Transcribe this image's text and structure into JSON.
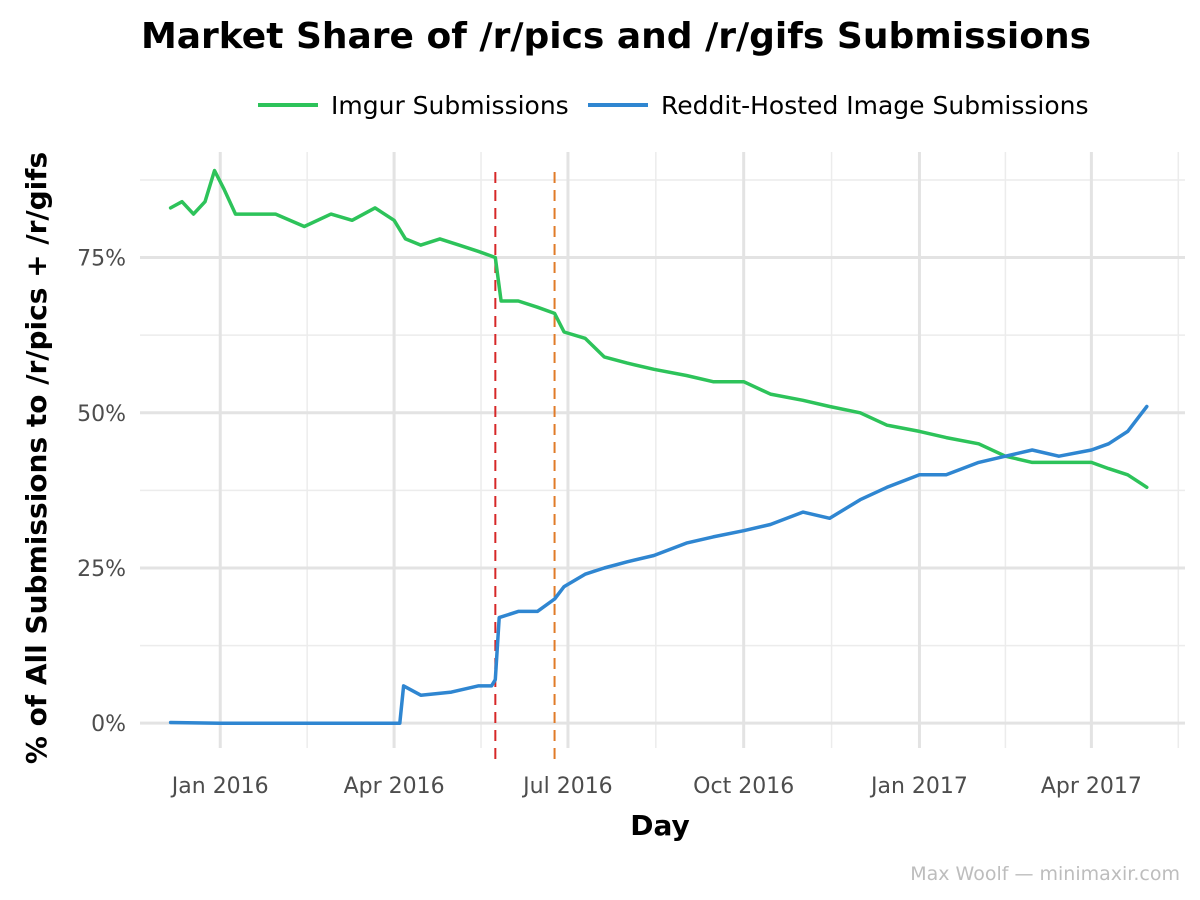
{
  "chart_data": {
    "type": "line",
    "title": "Market Share of /r/pics and /r/gifs Submissions",
    "xlabel": "Day",
    "ylabel": "% of All Submissions to /r/pics + /r/gifs",
    "credit": "Max Woolf — minimaxir.com",
    "legend_position": "top",
    "grid": true,
    "x_range": [
      "2015-11-20",
      "2017-05-20"
    ],
    "ylim": [
      -0.04,
      0.92
    ],
    "x_ticks": [
      {
        "date": "2016-01-01",
        "label": "Jan 2016"
      },
      {
        "date": "2016-04-01",
        "label": "Apr 2016"
      },
      {
        "date": "2016-07-01",
        "label": "Jul 2016"
      },
      {
        "date": "2016-10-01",
        "label": "Oct 2016"
      },
      {
        "date": "2017-01-01",
        "label": "Jan 2017"
      },
      {
        "date": "2017-04-01",
        "label": "Apr 2017"
      }
    ],
    "y_ticks": [
      {
        "value": 0,
        "label": "0%"
      },
      {
        "value": 0.25,
        "label": "25%"
      },
      {
        "value": 0.5,
        "label": "50%"
      },
      {
        "value": 0.75,
        "label": "75%"
      }
    ],
    "annotations": [
      {
        "type": "vline",
        "date": "2016-05-24",
        "color": "#d62728",
        "style": "dashed"
      },
      {
        "type": "vline",
        "date": "2016-06-24",
        "color": "#e07b28",
        "style": "dashed"
      }
    ],
    "series": [
      {
        "name": "Imgur Submissions",
        "color": "#2dc35a",
        "points": [
          [
            "2015-12-06",
            0.83
          ],
          [
            "2015-12-12",
            0.84
          ],
          [
            "2015-12-18",
            0.82
          ],
          [
            "2015-12-24",
            0.84
          ],
          [
            "2015-12-29",
            0.89
          ],
          [
            "2016-01-03",
            0.86
          ],
          [
            "2016-01-09",
            0.82
          ],
          [
            "2016-01-18",
            0.82
          ],
          [
            "2016-01-30",
            0.82
          ],
          [
            "2016-02-14",
            0.8
          ],
          [
            "2016-02-28",
            0.82
          ],
          [
            "2016-03-10",
            0.81
          ],
          [
            "2016-03-22",
            0.83
          ],
          [
            "2016-04-01",
            0.81
          ],
          [
            "2016-04-07",
            0.78
          ],
          [
            "2016-04-15",
            0.77
          ],
          [
            "2016-04-25",
            0.78
          ],
          [
            "2016-05-05",
            0.77
          ],
          [
            "2016-05-15",
            0.76
          ],
          [
            "2016-05-24",
            0.75
          ],
          [
            "2016-05-27",
            0.68
          ],
          [
            "2016-06-05",
            0.68
          ],
          [
            "2016-06-15",
            0.67
          ],
          [
            "2016-06-24",
            0.66
          ],
          [
            "2016-06-29",
            0.63
          ],
          [
            "2016-07-10",
            0.62
          ],
          [
            "2016-07-20",
            0.59
          ],
          [
            "2016-08-01",
            0.58
          ],
          [
            "2016-08-15",
            0.57
          ],
          [
            "2016-09-01",
            0.56
          ],
          [
            "2016-09-15",
            0.55
          ],
          [
            "2016-10-01",
            0.55
          ],
          [
            "2016-10-15",
            0.53
          ],
          [
            "2016-11-01",
            0.52
          ],
          [
            "2016-11-15",
            0.51
          ],
          [
            "2016-12-01",
            0.5
          ],
          [
            "2016-12-15",
            0.48
          ],
          [
            "2017-01-01",
            0.47
          ],
          [
            "2017-01-15",
            0.46
          ],
          [
            "2017-02-01",
            0.45
          ],
          [
            "2017-02-15",
            0.43
          ],
          [
            "2017-03-01",
            0.42
          ],
          [
            "2017-03-15",
            0.42
          ],
          [
            "2017-04-01",
            0.42
          ],
          [
            "2017-04-10",
            0.41
          ],
          [
            "2017-04-20",
            0.4
          ],
          [
            "2017-04-30",
            0.38
          ]
        ]
      },
      {
        "name": "Reddit-Hosted Image Submissions",
        "color": "#2f86d1",
        "points": [
          [
            "2015-12-06",
            0.001
          ],
          [
            "2016-01-01",
            0.0
          ],
          [
            "2016-02-01",
            0.0
          ],
          [
            "2016-03-01",
            0.0
          ],
          [
            "2016-04-04",
            0.0
          ],
          [
            "2016-04-06",
            0.06
          ],
          [
            "2016-04-15",
            0.045
          ],
          [
            "2016-05-01",
            0.05
          ],
          [
            "2016-05-15",
            0.06
          ],
          [
            "2016-05-22",
            0.06
          ],
          [
            "2016-05-24",
            0.07
          ],
          [
            "2016-05-26",
            0.17
          ],
          [
            "2016-06-05",
            0.18
          ],
          [
            "2016-06-15",
            0.18
          ],
          [
            "2016-06-24",
            0.2
          ],
          [
            "2016-06-29",
            0.22
          ],
          [
            "2016-07-10",
            0.24
          ],
          [
            "2016-07-20",
            0.25
          ],
          [
            "2016-08-01",
            0.26
          ],
          [
            "2016-08-15",
            0.27
          ],
          [
            "2016-09-01",
            0.29
          ],
          [
            "2016-09-15",
            0.3
          ],
          [
            "2016-10-01",
            0.31
          ],
          [
            "2016-10-15",
            0.32
          ],
          [
            "2016-11-01",
            0.34
          ],
          [
            "2016-11-15",
            0.33
          ],
          [
            "2016-12-01",
            0.36
          ],
          [
            "2016-12-15",
            0.38
          ],
          [
            "2017-01-01",
            0.4
          ],
          [
            "2017-01-15",
            0.4
          ],
          [
            "2017-02-01",
            0.42
          ],
          [
            "2017-02-15",
            0.43
          ],
          [
            "2017-03-01",
            0.44
          ],
          [
            "2017-03-15",
            0.43
          ],
          [
            "2017-04-01",
            0.44
          ],
          [
            "2017-04-10",
            0.45
          ],
          [
            "2017-04-20",
            0.47
          ],
          [
            "2017-04-30",
            0.51
          ]
        ]
      }
    ]
  }
}
